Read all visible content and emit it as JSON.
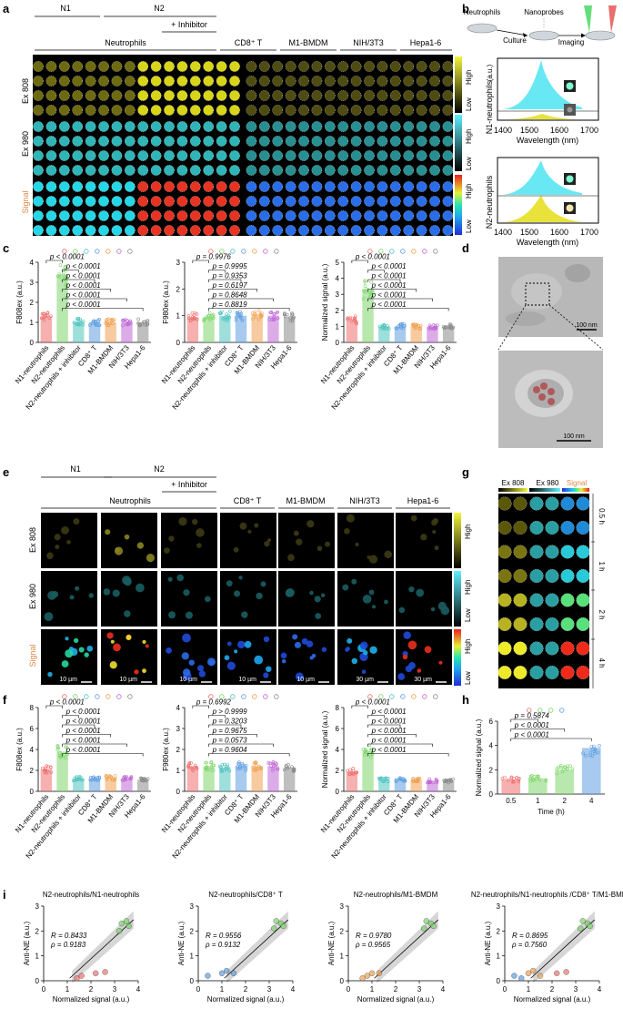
{
  "panel_letters": [
    "a",
    "b",
    "c",
    "d",
    "e",
    "f",
    "g",
    "h",
    "i"
  ],
  "a": {
    "group_n1": "N1",
    "group_n2": "N2",
    "inhibitor": "+ Inhibitor",
    "neutrophils": "Neutrophils",
    "cells": [
      "CD8⁺ T",
      "M1-BMDM",
      "NIH/3T3",
      "Hepa1-6"
    ],
    "rows": [
      "Ex 808",
      "Ex 980",
      "Signal"
    ],
    "scale_high": "High",
    "scale_low": "Low"
  },
  "b": {
    "step_labels": [
      "Neutrophils",
      "Nanoprobes"
    ],
    "arrow_labels": [
      "Culture",
      "Imaging"
    ],
    "ylabels": [
      "N1-neutrophils",
      "N2-neutrophils"
    ],
    "yunit": "(a.u.)",
    "xticks": [
      "1400",
      "1500",
      "1600",
      "1700"
    ],
    "xlabel": "Wavelength (nm)"
  },
  "chart_data": [
    {
      "type": "bar",
      "id": "c1",
      "ylabel": "F808ex (a.u.)",
      "ylim": [
        0,
        4
      ],
      "yticks": [
        "0",
        "1",
        "2",
        "3",
        "4"
      ],
      "categories": [
        "N1-neutrophils",
        "N2-neutrophils",
        "N2-neutrophils + inhibitor",
        "CD8⁺ T",
        "M1-BMDM",
        "NIH/3T3",
        "Hepa1-6"
      ],
      "values": [
        1.3,
        3.4,
        1.05,
        1.0,
        1.0,
        1.0,
        1.0
      ],
      "pvalues": [
        "p < 0.0001",
        "p < 0.0001",
        "p < 0.0001",
        "p < 0.0001",
        "p < 0.0001",
        "p < 0.0001"
      ]
    },
    {
      "type": "bar",
      "id": "c2",
      "ylabel": "F980ex (a.u.)",
      "ylim": [
        0,
        3
      ],
      "yticks": [
        "0",
        "1",
        "2",
        "3"
      ],
      "categories": [
        "N1-neutrophils",
        "N2-neutrophils",
        "N2-neutrophils + inhibitor",
        "CD8⁺ T",
        "M1-BMDM",
        "NIH/3T3",
        "Hepa1-6"
      ],
      "values": [
        0.95,
        0.95,
        1.0,
        1.0,
        1.05,
        1.0,
        0.95
      ],
      "pvalues": [
        "p = 0.9976",
        "p = 0.9995",
        "p = 0.9353",
        "p = 0.6197",
        "p = 0.8648",
        "p = 0.8819"
      ]
    },
    {
      "type": "bar",
      "id": "c3",
      "ylabel": "Normalized signal (a.u.)",
      "ylim": [
        0,
        5
      ],
      "yticks": [
        "0",
        "1",
        "2",
        "3",
        "4",
        "5"
      ],
      "categories": [
        "N1-neutrophils",
        "N2-neutrophils",
        "N2-neutrophils + inhibitor",
        "CD8⁺ T",
        "M1-BMDM",
        "NIH/3T3",
        "Hepa1-6"
      ],
      "values": [
        1.4,
        3.3,
        1.0,
        1.0,
        1.0,
        0.95,
        1.0
      ],
      "pvalues": [
        "p < 0.0001",
        "p < 0.0001",
        "p < 0.0001",
        "p < 0.0001",
        "p < 0.0001",
        "p < 0.0001"
      ]
    },
    {
      "type": "bar",
      "id": "f1",
      "ylabel": "F808ex (a.u.)",
      "ylim": [
        0,
        8
      ],
      "yticks": [
        "0",
        "2",
        "4",
        "6",
        "8"
      ],
      "categories": [
        "N1-neutrophils",
        "N2-neutrophils",
        "N2-neutrophils + inhibitor",
        "CD8⁺ T",
        "M1-BMDM",
        "NIH/3T3",
        "Hepa1-6"
      ],
      "values": [
        2.1,
        3.8,
        1.2,
        1.2,
        1.3,
        1.2,
        1.1
      ],
      "pvalues": [
        "p < 0.0001",
        "p < 0.0001",
        "p < 0.0001",
        "p < 0.0001",
        "p < 0.0001",
        "p < 0.0001"
      ]
    },
    {
      "type": "bar",
      "id": "f2",
      "ylabel": "F980ex (a.u.)",
      "ylim": [
        0,
        4
      ],
      "yticks": [
        "0",
        "1",
        "2",
        "3",
        "4"
      ],
      "categories": [
        "N1-neutrophils",
        "N2-neutrophils",
        "N2-neutrophils + inhibitor",
        "CD8⁺ T",
        "M1-BMDM",
        "NIH/3T3",
        "Hepa1-6"
      ],
      "values": [
        1.2,
        1.2,
        1.15,
        1.2,
        1.2,
        1.2,
        1.15
      ],
      "pvalues": [
        "p = 0.6992",
        "p > 0.9999",
        "p = 0.3203",
        "p = 0.9675",
        "p = 0.0573",
        "p = 0.9604"
      ]
    },
    {
      "type": "bar",
      "id": "f3",
      "ylabel": "Normalized signal (a.u.)",
      "ylim": [
        0,
        8
      ],
      "yticks": [
        "0",
        "2",
        "4",
        "6",
        "8"
      ],
      "categories": [
        "N1-neutrophils",
        "N2-neutrophils",
        "N2-neutrophils + inhibitor",
        "CD8⁺ T",
        "M1-BMDM",
        "NIH/3T3",
        "Hepa1-6"
      ],
      "values": [
        1.9,
        3.8,
        1.1,
        1.1,
        1.1,
        1.0,
        1.0
      ],
      "pvalues": [
        "p < 0.0001",
        "p < 0.0001",
        "p < 0.0001",
        "p < 0.0001",
        "p < 0.0001",
        "p < 0.0001"
      ]
    },
    {
      "type": "bar",
      "id": "h",
      "ylabel": "Normalized signal (a.u.)",
      "xlabel": "Time (h)",
      "ylim": [
        0,
        6
      ],
      "yticks": [
        "0",
        "2",
        "4",
        "6"
      ],
      "categories": [
        "0.5",
        "1",
        "2",
        "4"
      ],
      "values": [
        1.2,
        1.3,
        2.0,
        3.8
      ],
      "pvalues": [
        "p = 0.5874",
        "p < 0.0001",
        "p < 0.0001"
      ]
    },
    {
      "type": "scatter",
      "id": "i1",
      "title": "N2-neutrophils/N1-neutrophils",
      "R": "R = 0.8433",
      "rho": "ρ = 0.9183",
      "xlabel": "Normalized signal (a.u.)",
      "ylabel": "Anti-NE (a.u.)",
      "xlim": [
        0,
        4
      ],
      "ylim": [
        0,
        3
      ],
      "points": [
        [
          1.4,
          0.1
        ],
        [
          1.6,
          0.2
        ],
        [
          2.2,
          0.3
        ],
        [
          2.6,
          0.35
        ],
        [
          3.2,
          2.0
        ],
        [
          3.3,
          2.3
        ],
        [
          3.5,
          2.4
        ],
        [
          3.6,
          2.2
        ]
      ]
    },
    {
      "type": "scatter",
      "id": "i2",
      "title": "N2-neutrophils/CD8⁺ T",
      "R": "R = 0.9556",
      "rho": "ρ = 0.9132",
      "xlabel": "Normalized signal (a.u.)",
      "ylabel": "Anti-NE (a.u.)",
      "xlim": [
        0,
        4
      ],
      "ylim": [
        0,
        3
      ],
      "points": [
        [
          0.4,
          0.2
        ],
        [
          1.0,
          0.3
        ],
        [
          1.2,
          0.4
        ],
        [
          1.5,
          0.3
        ],
        [
          3.2,
          2.1
        ],
        [
          3.3,
          2.4
        ],
        [
          3.5,
          2.3
        ],
        [
          3.6,
          2.2
        ]
      ]
    },
    {
      "type": "scatter",
      "id": "i3",
      "title": "N2-neutrophils/M1-BMDM",
      "R": "R = 0.9780",
      "rho": "ρ = 0.9565",
      "xlabel": "Normalized signal (a.u.)",
      "ylabel": "Anti-NE (a.u.)",
      "xlim": [
        0,
        4
      ],
      "ylim": [
        0,
        3
      ],
      "points": [
        [
          0.6,
          0.1
        ],
        [
          0.8,
          0.2
        ],
        [
          1.0,
          0.3
        ],
        [
          1.3,
          0.3
        ],
        [
          3.2,
          2.1
        ],
        [
          3.3,
          2.4
        ],
        [
          3.5,
          2.3
        ],
        [
          3.6,
          2.2
        ]
      ]
    },
    {
      "type": "scatter",
      "id": "i4",
      "title": "N2-neutrophils/N1-neutrophils /CD8⁺ T/M1-BMDM",
      "R": "R = 0.8695",
      "rho": "ρ = 0.7560",
      "xlabel": "Normalized signal (a.u.)",
      "ylabel": "Anti-NE (a.u.)",
      "xlim": [
        0,
        4
      ],
      "ylim": [
        0,
        3
      ],
      "points": [
        [
          0.4,
          0.2
        ],
        [
          0.7,
          0.1
        ],
        [
          1.0,
          0.3
        ],
        [
          1.2,
          0.4
        ],
        [
          1.5,
          0.2
        ],
        [
          2.2,
          0.3
        ],
        [
          2.6,
          0.35
        ],
        [
          3.2,
          2.1
        ],
        [
          3.3,
          2.4
        ],
        [
          3.5,
          2.3
        ],
        [
          3.6,
          2.2
        ]
      ]
    }
  ],
  "d": {
    "scale1": "100 nm",
    "scale2": "100 nm"
  },
  "e": {
    "group_n1": "N1",
    "group_n2": "N2",
    "inhibitor": "+ Inhibitor",
    "neutrophils": "Neutrophils",
    "cells": [
      "CD8⁺ T",
      "M1-BMDM",
      "NIH/3T3",
      "Hepa1-6"
    ],
    "rows": [
      "Ex 808",
      "Ex 980",
      "Signal"
    ],
    "scalebars": [
      "10 µm",
      "10 µm",
      "10 µm",
      "10 µm",
      "10 µm",
      "30 µm",
      "30 µm"
    ],
    "scale_high": "High",
    "scale_low": "Low"
  },
  "g": {
    "cols": [
      "Ex 808",
      "Ex 980",
      "Signal"
    ],
    "times": [
      "0.5 h",
      "1 h",
      "2 h",
      "4 h"
    ]
  },
  "colors": {
    "green": "#7dd66a",
    "red": "#e86a6a",
    "teal": "#4fc4c0",
    "orange": "#f0a050",
    "purple": "#c067d6",
    "gray": "#8a8a8a",
    "blue": "#5f9ee0",
    "yellow": "#e8e23a",
    "cyan": "#58e6f2"
  }
}
